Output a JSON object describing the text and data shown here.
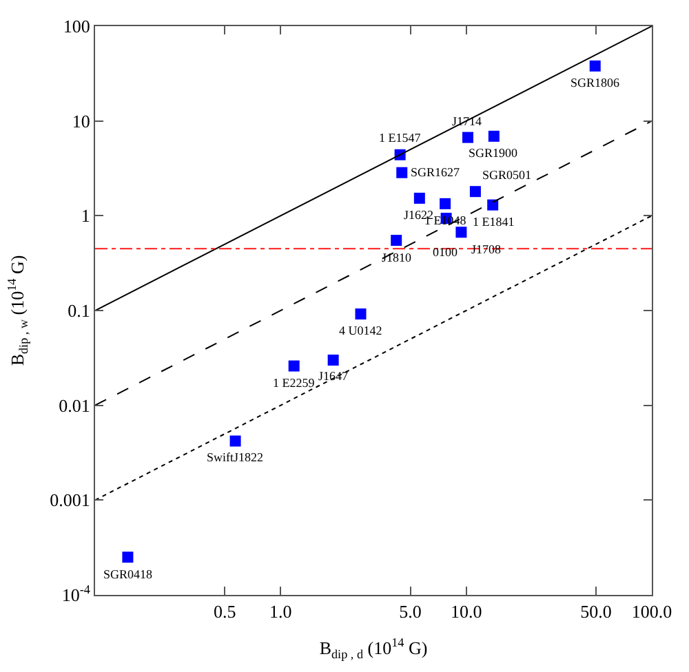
{
  "chart_data": {
    "type": "scatter",
    "xlabel": "B$_{dip , d}$ (10$^{14}$ G)",
    "ylabel": "B$_{dip , w}$ (10$^{14}$ G)",
    "log": "xy",
    "marker": "square",
    "xlim": [
      0.1,
      100
    ],
    "ylim": [
      0.0001,
      100
    ],
    "xticks": [
      0.5,
      {
        "value": 1,
        "label": "1.0"
      },
      {
        "value": 5,
        "label": "5.0"
      },
      {
        "value": 10,
        "label": "10.0"
      },
      {
        "value": 50,
        "label": "50.0"
      },
      {
        "value": 100,
        "label": "100.0"
      }
    ],
    "yticks": [
      {
        "value": 0.0001,
        "label": "10$^{-4}$"
      },
      0.001,
      0.01,
      0.1,
      1,
      10,
      100
    ],
    "series": [
      {
        "color": "#0000ff",
        "x": [
          49.5,
          14.1,
          10.2,
          4.4,
          4.5,
          5.6,
          7.7,
          11.2,
          13.9,
          7.8,
          9.4,
          4.2,
          2.7,
          1.18,
          1.92,
          0.57,
          0.15
        ],
        "values": [
          38,
          6.9,
          6.7,
          4.4,
          2.85,
          1.53,
          1.34,
          1.8,
          1.3,
          0.94,
          0.67,
          0.55,
          0.092,
          0.026,
          0.03,
          0.0042,
          0.00025
        ]
      },
      {
        "type": "line",
        "marker": "none",
        "color": "#000000",
        "line_style": "solid",
        "x": [
          0.1,
          100
        ],
        "values": [
          0.1,
          100
        ]
      },
      {
        "type": "line",
        "marker": "none",
        "color": "#000000",
        "line_style": "dashed",
        "x": [
          0.1,
          100
        ],
        "values": [
          0.01,
          10
        ]
      },
      {
        "type": "line",
        "marker": "none",
        "color": "#000000",
        "line_style": "dotted",
        "x": [
          0.1,
          100
        ],
        "values": [
          0.001,
          1
        ]
      }
    ],
    "annotations": [
      {
        "text": "SGR1806",
        "x": 49.5,
        "y": 38
      },
      {
        "text": "SGR1900",
        "x": 14.1,
        "y": 6.9
      },
      {
        "text": "J1714",
        "x": 10.2,
        "y": 6.7
      },
      {
        "text": "1 E1547",
        "x": 4.4,
        "y": 4.4
      },
      {
        "text": "SGR1627",
        "x": 4.5,
        "y": 2.85
      },
      {
        "text": "J1622",
        "x": 5.6,
        "y": 1.53
      },
      {
        "text": "1 E1048",
        "x": 7.7,
        "y": 1.34
      },
      {
        "text": "SGR0501",
        "x": 11.2,
        "y": 1.8
      },
      {
        "text": "1 E1841",
        "x": 13.9,
        "y": 1.3
      },
      {
        "text": "0100",
        "x": 7.8,
        "y": 0.94
      },
      {
        "text": "J1708",
        "x": 9.4,
        "y": 0.67
      },
      {
        "text": "J1810",
        "x": 4.2,
        "y": 0.55
      },
      {
        "text": "4 U0142",
        "x": 2.7,
        "y": 0.092
      },
      {
        "text": "1 E2259",
        "x": 1.18,
        "y": 0.026
      },
      {
        "text": "J1647",
        "x": 1.92,
        "y": 0.03
      },
      {
        "text": "SwiftJ1822",
        "x": 0.57,
        "y": 0.0042
      },
      {
        "text": "SGR0418",
        "x": 0.15,
        "y": 0.00025
      }
    ],
    "ref_lines": [
      {
        "axis": "y",
        "value": 0.45,
        "color": "#ff3333",
        "line_style": "dashdot"
      }
    ]
  }
}
